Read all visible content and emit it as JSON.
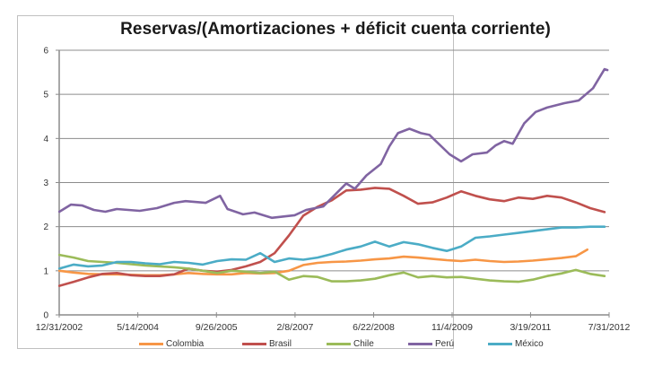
{
  "chart_data": {
    "type": "line",
    "title": "Reservas/(Amortizaciones + déficit cuenta corriente)",
    "xlabel": "",
    "ylabel": "",
    "ylim": [
      0,
      6
    ],
    "yticks": [
      "0",
      "1",
      "2",
      "3",
      "4",
      "5",
      "6"
    ],
    "xticks": [
      "12/31/2002",
      "5/14/2004",
      "9/26/2005",
      "2/8/2007",
      "6/22/2008",
      "11/4/2009",
      "3/19/2011",
      "7/31/2012"
    ],
    "xtick_years": [
      2002.997,
      2004.367,
      2005.737,
      2007.107,
      2008.477,
      2009.844,
      2011.211,
      2012.58
    ],
    "xlim": [
      2002.997,
      2012.58
    ],
    "grid": "horizontal",
    "legend_position": "bottom",
    "series": [
      {
        "name": "Colombia",
        "color": "#f79646",
        "x": [
          2003.0,
          2003.25,
          2003.5,
          2003.75,
          2004.0,
          2004.25,
          2004.5,
          2004.75,
          2005.0,
          2005.25,
          2005.5,
          2005.75,
          2006.0,
          2006.25,
          2006.5,
          2006.75,
          2007.0,
          2007.25,
          2007.5,
          2007.75,
          2008.0,
          2008.25,
          2008.5,
          2008.75,
          2009.0,
          2009.25,
          2009.5,
          2009.75,
          2010.0,
          2010.25,
          2010.5,
          2010.75,
          2011.0,
          2011.25,
          2011.5,
          2011.75,
          2012.0,
          2012.2
        ],
        "values": [
          1.0,
          0.96,
          0.93,
          0.92,
          0.92,
          0.91,
          0.9,
          0.9,
          0.92,
          0.95,
          0.93,
          0.92,
          0.92,
          0.95,
          0.94,
          0.95,
          1.0,
          1.13,
          1.18,
          1.2,
          1.21,
          1.23,
          1.26,
          1.28,
          1.32,
          1.3,
          1.27,
          1.24,
          1.22,
          1.25,
          1.22,
          1.2,
          1.21,
          1.23,
          1.26,
          1.29,
          1.33,
          1.48
        ]
      },
      {
        "name": "Brasil",
        "color": "#c0504d",
        "x": [
          2003.0,
          2003.25,
          2003.5,
          2003.75,
          2004.0,
          2004.25,
          2004.5,
          2004.75,
          2005.0,
          2005.25,
          2005.5,
          2005.75,
          2006.0,
          2006.25,
          2006.5,
          2006.75,
          2007.0,
          2007.25,
          2007.5,
          2007.75,
          2008.0,
          2008.25,
          2008.5,
          2008.75,
          2009.0,
          2009.25,
          2009.5,
          2009.75,
          2010.0,
          2010.25,
          2010.5,
          2010.75,
          2011.0,
          2011.25,
          2011.5,
          2011.75,
          2012.0,
          2012.25,
          2012.5
        ],
        "values": [
          0.66,
          0.75,
          0.85,
          0.93,
          0.95,
          0.9,
          0.88,
          0.88,
          0.92,
          1.05,
          1.0,
          0.98,
          1.02,
          1.1,
          1.2,
          1.4,
          1.8,
          2.25,
          2.45,
          2.6,
          2.82,
          2.84,
          2.88,
          2.86,
          2.7,
          2.52,
          2.55,
          2.66,
          2.8,
          2.7,
          2.62,
          2.58,
          2.66,
          2.63,
          2.7,
          2.66,
          2.55,
          2.42,
          2.33
        ]
      },
      {
        "name": "Chile",
        "color": "#9bbb59",
        "x": [
          2003.0,
          2003.25,
          2003.5,
          2003.75,
          2004.0,
          2004.25,
          2004.5,
          2004.75,
          2005.0,
          2005.25,
          2005.5,
          2005.75,
          2006.0,
          2006.25,
          2006.5,
          2006.75,
          2007.0,
          2007.25,
          2007.5,
          2007.75,
          2008.0,
          2008.25,
          2008.5,
          2008.75,
          2009.0,
          2009.25,
          2009.5,
          2009.75,
          2010.0,
          2010.25,
          2010.5,
          2010.75,
          2011.0,
          2011.25,
          2011.5,
          2011.75,
          2012.0,
          2012.25,
          2012.5
        ],
        "values": [
          1.36,
          1.3,
          1.22,
          1.2,
          1.18,
          1.15,
          1.12,
          1.1,
          1.08,
          1.05,
          1.0,
          0.95,
          1.0,
          0.98,
          0.95,
          0.98,
          0.8,
          0.88,
          0.86,
          0.76,
          0.76,
          0.78,
          0.82,
          0.9,
          0.96,
          0.85,
          0.88,
          0.85,
          0.86,
          0.82,
          0.78,
          0.76,
          0.75,
          0.8,
          0.88,
          0.94,
          1.02,
          0.93,
          0.88
        ]
      },
      {
        "name": "Perú",
        "color": "#8064a2",
        "x": [
          2003.0,
          2003.2,
          2003.4,
          2003.6,
          2003.8,
          2004.0,
          2004.2,
          2004.4,
          2004.7,
          2005.0,
          2005.2,
          2005.55,
          2005.8,
          2005.93,
          2006.2,
          2006.4,
          2006.7,
          2007.1,
          2007.3,
          2007.6,
          2007.8,
          2008.0,
          2008.15,
          2008.35,
          2008.6,
          2008.75,
          2008.9,
          2009.1,
          2009.3,
          2009.45,
          2009.8,
          2010.0,
          2010.2,
          2010.45,
          2010.6,
          2010.75,
          2010.9,
          2011.1,
          2011.3,
          2011.5,
          2011.8,
          2012.05,
          2012.3,
          2012.5,
          2012.55
        ],
        "values": [
          2.34,
          2.5,
          2.48,
          2.38,
          2.34,
          2.4,
          2.38,
          2.36,
          2.42,
          2.54,
          2.58,
          2.54,
          2.7,
          2.4,
          2.28,
          2.32,
          2.2,
          2.26,
          2.38,
          2.46,
          2.72,
          2.98,
          2.86,
          3.16,
          3.42,
          3.82,
          4.12,
          4.22,
          4.12,
          4.08,
          3.64,
          3.48,
          3.64,
          3.68,
          3.84,
          3.94,
          3.88,
          4.34,
          4.6,
          4.7,
          4.8,
          4.86,
          5.14,
          5.57,
          5.55
        ]
      },
      {
        "name": "México",
        "color": "#4bacc6",
        "x": [
          2003.0,
          2003.25,
          2003.5,
          2003.75,
          2004.0,
          2004.25,
          2004.5,
          2004.75,
          2005.0,
          2005.25,
          2005.5,
          2005.75,
          2006.0,
          2006.25,
          2006.5,
          2006.75,
          2007.0,
          2007.25,
          2007.5,
          2007.75,
          2008.0,
          2008.25,
          2008.5,
          2008.75,
          2009.0,
          2009.25,
          2009.5,
          2009.75,
          2010.0,
          2010.25,
          2010.5,
          2010.75,
          2011.0,
          2011.25,
          2011.5,
          2011.75,
          2012.0,
          2012.25,
          2012.5
        ],
        "values": [
          1.05,
          1.14,
          1.1,
          1.12,
          1.2,
          1.2,
          1.17,
          1.15,
          1.2,
          1.18,
          1.14,
          1.22,
          1.26,
          1.25,
          1.4,
          1.2,
          1.28,
          1.25,
          1.3,
          1.38,
          1.48,
          1.55,
          1.66,
          1.55,
          1.65,
          1.6,
          1.52,
          1.45,
          1.55,
          1.75,
          1.78,
          1.82,
          1.86,
          1.9,
          1.94,
          1.98,
          1.98,
          2.0,
          2.0
        ]
      }
    ]
  }
}
